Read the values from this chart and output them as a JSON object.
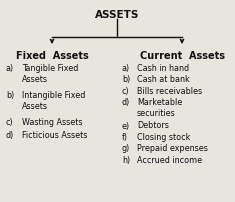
{
  "title": "ASSETS",
  "left_header": "Fixed  Assets",
  "right_header": "Current  Assets",
  "left_items_label": [
    "a)",
    "b)",
    "c)",
    "d)"
  ],
  "left_items_text": [
    "Tangible Fixed\nAssets",
    "Intangible Fixed\nAssets",
    "Wasting Assets",
    "Ficticious Assets"
  ],
  "right_items_label": [
    "a)",
    "b)",
    "c)",
    "d)",
    "e)",
    "f)",
    "g)",
    "h)"
  ],
  "right_items_text": [
    "Cash in hand",
    "Cash at bank",
    "Bills receivables",
    "Marketable\nsecurities",
    "Debtors",
    "Closing stock",
    "Prepaid expenses",
    "Accrued income"
  ],
  "bg_color": "#e8e4de",
  "text_color": "#111111",
  "line_color": "#111111",
  "title_fontsize": 7.5,
  "header_fontsize": 7.0,
  "item_fontsize": 5.8
}
